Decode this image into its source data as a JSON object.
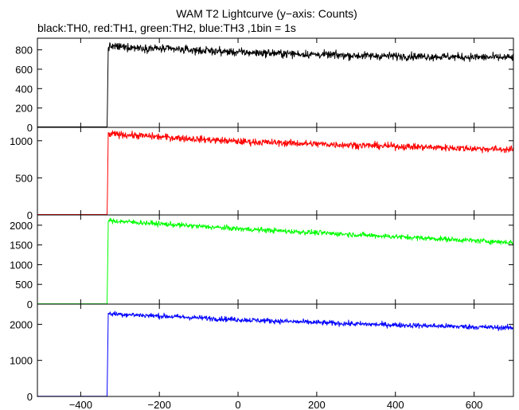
{
  "chart_data": {
    "type": "line",
    "title": "WAM T2 Lightcurve (y−axis: Counts)",
    "subtitle": "black:TH0, red:TH1, green:TH2, blue:TH3 ,1bin = 1s",
    "xlim": [
      -510,
      700
    ],
    "x_ticks": [
      -400,
      -200,
      0,
      200,
      400,
      600
    ],
    "x_tick_labels": [
      "−400",
      "−200",
      "0",
      "200",
      "400",
      "600"
    ],
    "panels": [
      {
        "name": "TH0",
        "color": "#000000",
        "ylim": [
          0,
          920
        ],
        "y_ticks": [
          0,
          200,
          400,
          600,
          800
        ],
        "y_tick_labels": [
          "0",
          "200",
          "400",
          "600",
          "800"
        ],
        "x": [
          -510,
          -333,
          -332,
          -330,
          -320,
          0,
          300,
          700
        ],
        "y": [
          5,
          5,
          230,
          830,
          835,
          775,
          740,
          720
        ],
        "noise": 28
      },
      {
        "name": "TH1",
        "color": "#ff0000",
        "ylim": [
          0,
          1180
        ],
        "y_ticks": [
          0,
          500,
          1000
        ],
        "y_tick_labels": [
          "0",
          "500",
          "1000"
        ],
        "x": [
          -510,
          -333,
          -332,
          -330,
          -320,
          0,
          300,
          700
        ],
        "y": [
          5,
          5,
          300,
          1080,
          1090,
          990,
          940,
          880
        ],
        "noise": 32
      },
      {
        "name": "TH2",
        "color": "#00ff00",
        "ylim": [
          0,
          2260
        ],
        "y_ticks": [
          0,
          500,
          1000,
          1500,
          2000
        ],
        "y_tick_labels": [
          "0",
          "500",
          "1000",
          "1500",
          "2000"
        ],
        "x": [
          -510,
          -333,
          -332,
          -330,
          -320,
          0,
          300,
          700
        ],
        "y": [
          8,
          8,
          600,
          2120,
          2110,
          1910,
          1760,
          1560
        ],
        "noise": 45
      },
      {
        "name": "TH3",
        "color": "#0000ff",
        "ylim": [
          0,
          2560
        ],
        "y_ticks": [
          0,
          1000,
          2000
        ],
        "y_tick_labels": [
          "0",
          "1000",
          "2000"
        ],
        "x": [
          -510,
          -333,
          -332,
          -330,
          -320,
          0,
          300,
          700
        ],
        "y": [
          5,
          5,
          700,
          2300,
          2290,
          2130,
          2010,
          1900
        ],
        "noise": 50
      }
    ]
  }
}
